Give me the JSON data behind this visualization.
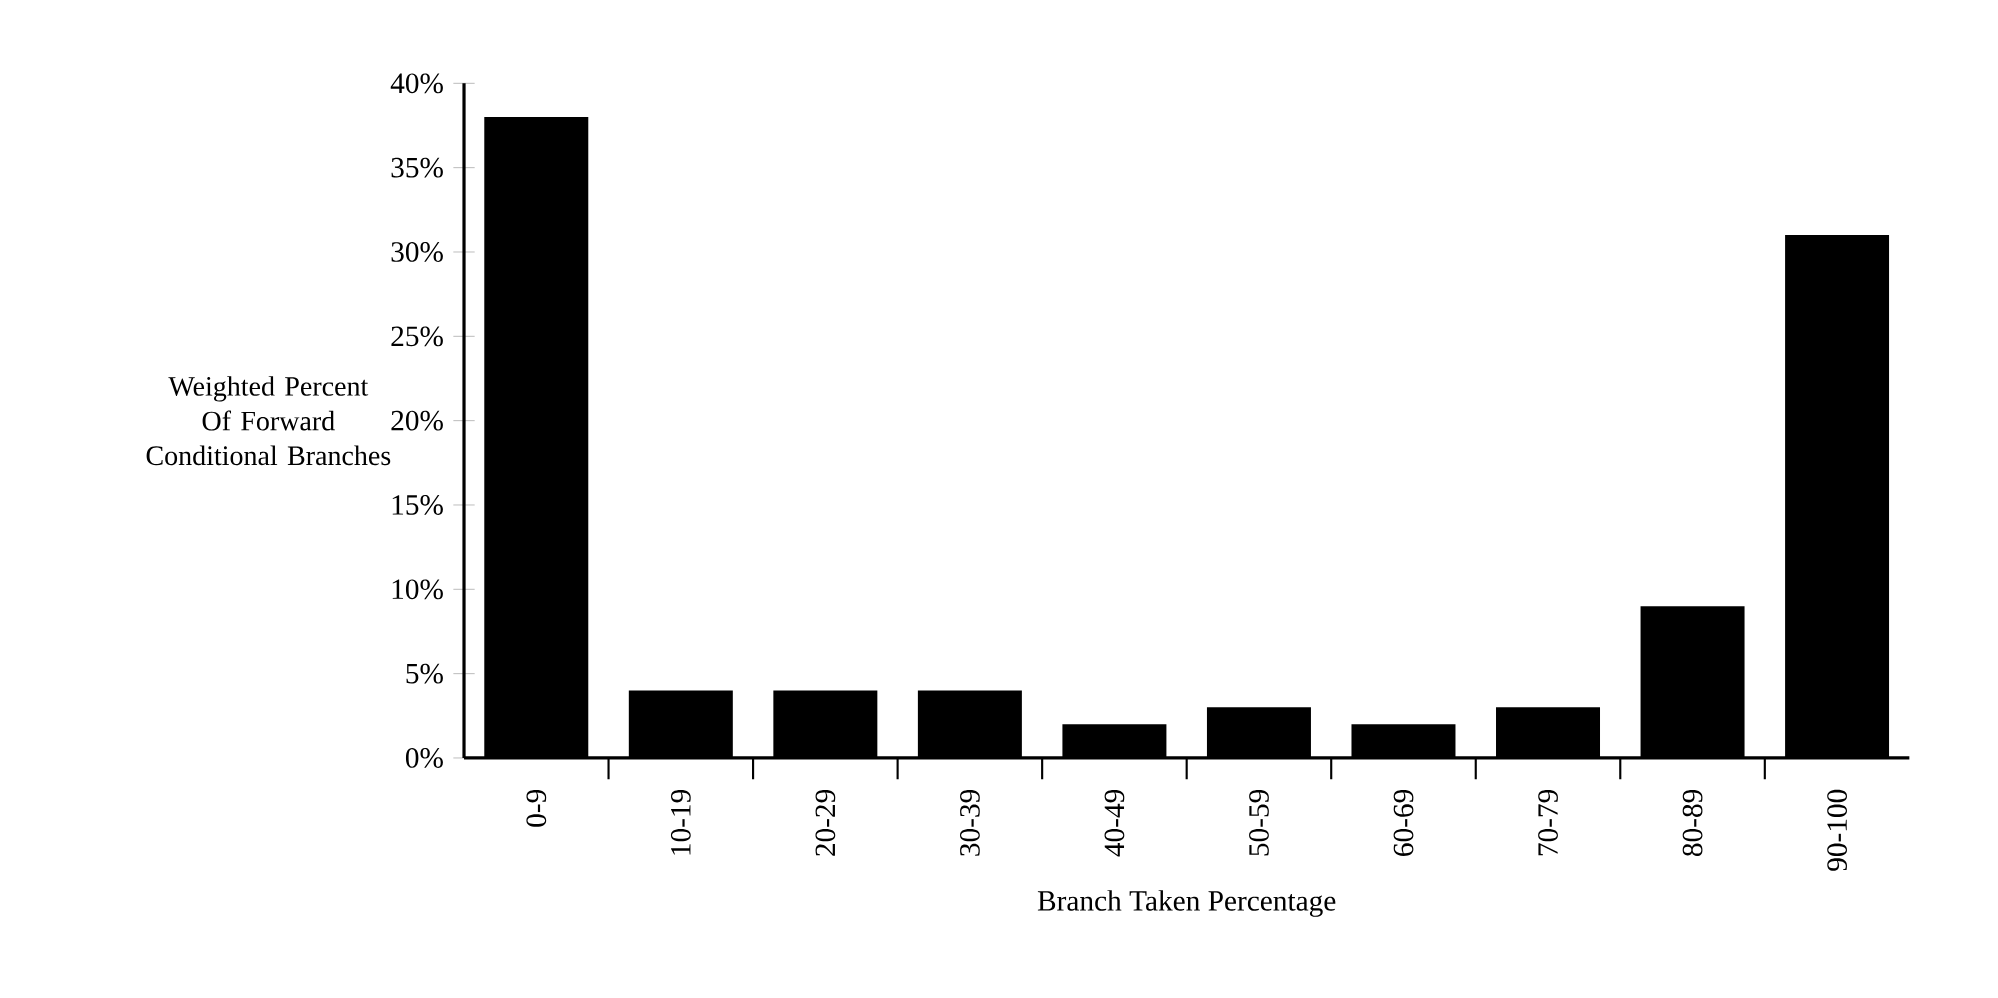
{
  "chart_data": {
    "type": "bar",
    "xlabel": "Branch Taken Percentage",
    "ylabel": "Weighted Percent Of Forward Conditional Branches",
    "categories": [
      "0-9",
      "10-19",
      "20-29",
      "30-39",
      "40-49",
      "50-59",
      "60-69",
      "70-79",
      "80-89",
      "90-100"
    ],
    "values": [
      38,
      4,
      4,
      4,
      2,
      3,
      2,
      3,
      9,
      31
    ],
    "color": "#000000",
    "ylim": [
      0,
      40
    ],
    "yticks": [
      {
        "value": 0,
        "label": "0%"
      },
      {
        "value": 5,
        "label": "5%"
      },
      {
        "value": 10,
        "label": "10%"
      },
      {
        "value": 15,
        "label": "15%"
      },
      {
        "value": 20,
        "label": "20%"
      },
      {
        "value": 25,
        "label": "25%"
      },
      {
        "value": 30,
        "label": "30%"
      },
      {
        "value": 35,
        "label": "35%"
      },
      {
        "value": 40,
        "label": "40%"
      }
    ],
    "grid": false
  }
}
